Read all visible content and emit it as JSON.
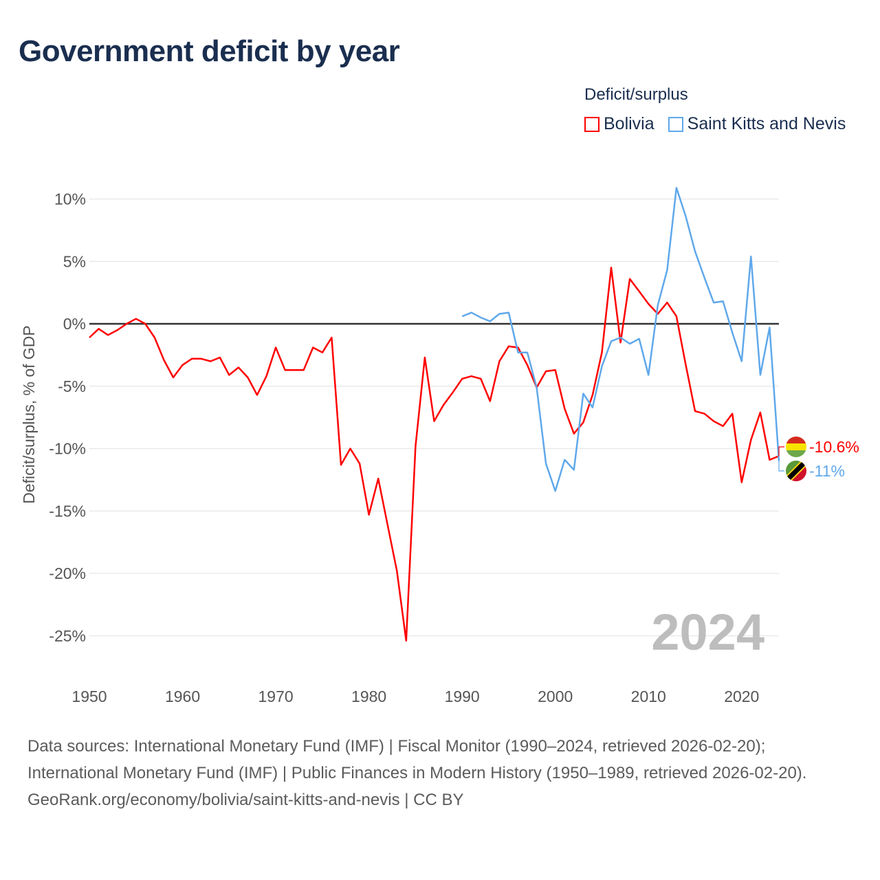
{
  "title": "Government deficit by year",
  "legend": {
    "title": "Deficit/surplus",
    "items": [
      {
        "name": "Bolivia",
        "color": "#ff0000"
      },
      {
        "name": "Saint Kitts and Nevis",
        "color": "#5fa8eb"
      }
    ]
  },
  "year_watermark": "2024",
  "sources": {
    "line1": "Data sources: International Monetary Fund (IMF) | Fiscal Monitor (1990–2024, retrieved 2026-02-20); International Monetary Fund (IMF) | Public Finances in Modern History (1950–1989, retrieved 2026-02-20).",
    "line2": "GeoRank.org/economy/bolivia/saint-kitts-and-nevis | CC BY"
  },
  "chart_data": {
    "type": "line",
    "title": "Government deficit by year",
    "xlabel": "",
    "ylabel": "Deficit/surplus, % of GDP",
    "xlim": [
      1950,
      2024
    ],
    "ylim": [
      -27,
      12
    ],
    "x_ticks": [
      1950,
      1960,
      1970,
      1980,
      1990,
      2000,
      2010,
      2020
    ],
    "y_ticks": [
      10,
      5,
      0,
      -5,
      -10,
      -15,
      -20,
      -25
    ],
    "y_tick_labels": [
      "10%",
      "5%",
      "0%",
      "-5%",
      "-10%",
      "-15%",
      "-20%",
      "-25%"
    ],
    "grid": true,
    "legend_position": "top-right",
    "series": [
      {
        "name": "Bolivia",
        "color": "#ff0000",
        "start_year": 1950,
        "end_label": "-10.6%",
        "values": [
          -1.1,
          -0.4,
          -0.9,
          -0.5,
          0.0,
          0.4,
          0.0,
          -1.1,
          -2.9,
          -4.3,
          -3.3,
          -2.8,
          -2.8,
          -3.0,
          -2.7,
          -4.1,
          -3.5,
          -4.3,
          -5.7,
          -4.2,
          -1.9,
          -3.7,
          -3.7,
          -3.7,
          -1.9,
          -2.3,
          -1.1,
          -11.3,
          -10.0,
          -11.2,
          -15.3,
          -12.4,
          -16.1,
          -19.8,
          -25.4,
          -9.8,
          -2.7,
          -7.8,
          -6.5,
          -5.5,
          -4.4,
          -4.2,
          -4.4,
          -6.2,
          -3.0,
          -1.8,
          -1.9,
          -3.3,
          -5.1,
          -3.8,
          -3.7,
          -6.8,
          -8.8,
          -7.9,
          -5.7,
          -2.3,
          4.5,
          -1.5,
          3.6,
          2.6,
          1.6,
          0.8,
          1.7,
          0.6,
          -3.3,
          -7.0,
          -7.2,
          -7.8,
          -8.2,
          -7.2,
          -12.7,
          -9.3,
          -7.1,
          -10.9,
          -10.6
        ]
      },
      {
        "name": "Saint Kitts and Nevis",
        "color": "#5fa8eb",
        "start_year": 1990,
        "end_label": "-11%",
        "values": [
          0.6,
          0.9,
          0.5,
          0.2,
          0.8,
          0.9,
          -2.3,
          -2.3,
          -5.1,
          -11.2,
          -13.4,
          -10.9,
          -11.7,
          -5.6,
          -6.7,
          -3.4,
          -1.4,
          -1.1,
          -1.6,
          -1.2,
          -4.1,
          1.5,
          4.3,
          10.9,
          8.6,
          5.8,
          3.7,
          1.7,
          1.8,
          -0.7,
          -3.0,
          5.4,
          -4.1,
          -0.3,
          -11.0
        ]
      }
    ]
  }
}
